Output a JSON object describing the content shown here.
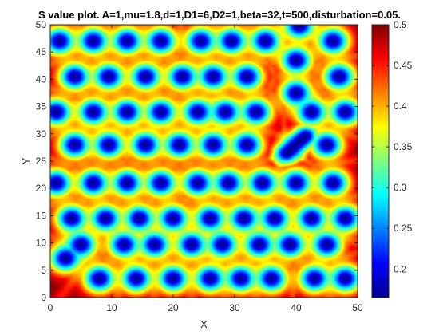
{
  "chart_data": {
    "type": "heatmap",
    "title": "S value plot. A=1,mu=1.8,d=1,D1=6,D2=1,beta=32,t=500,disturbation=0.05.",
    "xlabel": "X",
    "ylabel": "Y",
    "xlim": [
      0,
      50
    ],
    "ylim": [
      0,
      50
    ],
    "x_ticks": [
      0,
      10,
      20,
      30,
      40,
      50
    ],
    "y_ticks": [
      0,
      5,
      10,
      15,
      20,
      25,
      30,
      35,
      40,
      45,
      50
    ],
    "colorbar": {
      "colormap": "jet",
      "range": [
        0.165,
        0.5
      ],
      "ticks": [
        0.2,
        0.25,
        0.3,
        0.35,
        0.4,
        0.45,
        0.5
      ]
    },
    "description_spots": {
      "note_units": "spot centres in data units",
      "rows": [
        {
          "y": 3.5,
          "x": [
            8,
            14,
            20,
            26,
            31,
            36,
            43,
            48
          ]
        },
        {
          "y": 7.2,
          "x": [
            2.5
          ]
        },
        {
          "y": 9.7,
          "x": [
            5,
            12,
            17,
            23,
            28,
            34,
            39,
            45
          ]
        },
        {
          "y": 14.5,
          "x": [
            3.5,
            9,
            14.5,
            20,
            26,
            31.5,
            36.5,
            42.5,
            48
          ]
        },
        {
          "y": 21,
          "x": [
            1,
            7,
            12.5,
            18,
            24,
            29,
            34.5,
            40,
            46
          ]
        },
        {
          "y": 28,
          "x": [
            4,
            9.5,
            15.5,
            21,
            26.5,
            32,
            45
          ]
        },
        {
          "y": 34,
          "x": [
            1,
            7,
            12.5,
            18,
            24,
            28.5,
            33.5,
            42.5,
            48
          ]
        },
        {
          "y": 37.5,
          "x": [
            40
          ]
        },
        {
          "y": 40.5,
          "x": [
            4,
            9.5,
            15.5,
            21.5,
            26.5,
            32,
            47
          ]
        },
        {
          "y": 43.5,
          "x": [
            40
          ]
        },
        {
          "y": 47,
          "x": [
            1.5,
            7,
            12.5,
            18,
            24.5,
            29.5,
            35,
            46
          ]
        },
        {
          "y": 49.8,
          "x": [
            40.5
          ]
        }
      ],
      "elongated": [
        {
          "x1": 38.5,
          "y1": 26.5,
          "x2": 41.5,
          "y2": 29.5
        }
      ]
    }
  }
}
